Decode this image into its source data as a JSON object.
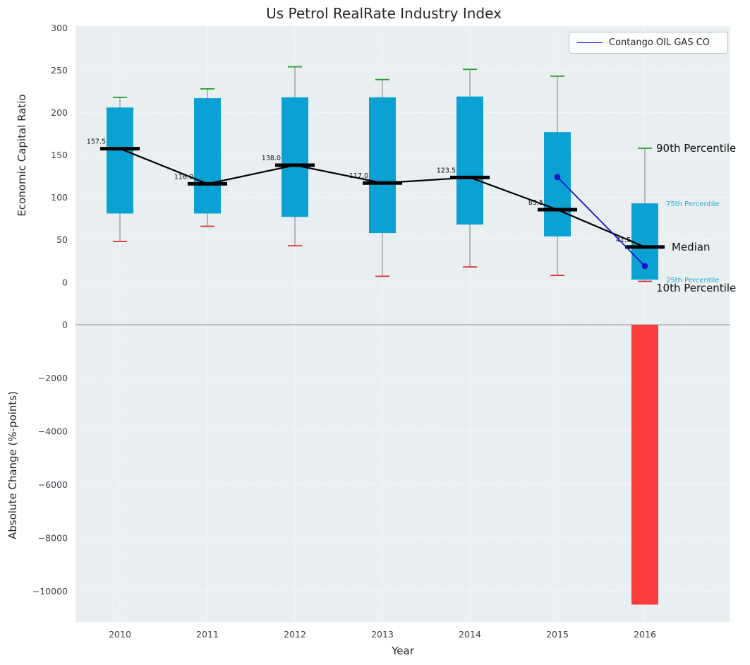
{
  "chart_data": {
    "type": "boxplot",
    "title": "Us Petrol RealRate Industry Index",
    "categories": [
      "2010",
      "2011",
      "2012",
      "2013",
      "2014",
      "2015",
      "2016"
    ],
    "top_panel": {
      "ylabel": "Economic Capital Ratio",
      "ylim": [
        -31,
        302
      ],
      "yticks": [
        0,
        50,
        100,
        150,
        200,
        250,
        300
      ],
      "grid": true,
      "boxes": [
        {
          "year": "2010",
          "p10": 48,
          "p25": 81,
          "median": 157.5,
          "p75": 206,
          "p90": 218,
          "label": "157.5"
        },
        {
          "year": "2011",
          "p10": 66,
          "p25": 81,
          "median": 116.0,
          "p75": 217,
          "p90": 228,
          "label": "116.0"
        },
        {
          "year": "2012",
          "p10": 43,
          "p25": 77,
          "median": 138.0,
          "p75": 218,
          "p90": 254,
          "label": "138.0"
        },
        {
          "year": "2013",
          "p10": 7,
          "p25": 58,
          "median": 117.0,
          "p75": 218,
          "p90": 239,
          "label": "117.0"
        },
        {
          "year": "2014",
          "p10": 18,
          "p25": 68,
          "median": 123.5,
          "p75": 219,
          "p90": 251,
          "label": "123.5"
        },
        {
          "year": "2015",
          "p10": 8,
          "p25": 54,
          "median": 85.5,
          "p75": 177,
          "p90": 243,
          "label": "85.5"
        },
        {
          "year": "2016",
          "p10": 1,
          "p25": 3,
          "median": 41.5,
          "p75": 93,
          "p90": 158,
          "label": "41.5"
        }
      ],
      "company_line": {
        "name": "Contango OIL GAS CO",
        "years": [
          "2015",
          "2016"
        ],
        "values": [
          124,
          19
        ]
      },
      "percentile_annotations": [
        {
          "text": "90th Percentile",
          "value": 158,
          "style": "major",
          "x": 930
        },
        {
          "text": "75th Percentile",
          "value": 93,
          "style": "minor",
          "x": 944
        },
        {
          "text": "Median",
          "value": 41.5,
          "style": "major",
          "x": 952
        },
        {
          "text": "25th Percentile",
          "value": 3,
          "style": "minor",
          "x": 944
        },
        {
          "text": "10th Percentile",
          "value": -7,
          "style": "major",
          "x": 930
        }
      ]
    },
    "bottom_panel": {
      "xlabel": "Year",
      "ylabel": "Absolute Change (%-points)",
      "ylim": [
        -11150,
        610
      ],
      "yticks": [
        0,
        -2000,
        -4000,
        -6000,
        -8000,
        -10000
      ],
      "grid": true,
      "bars": [
        {
          "year": "2016",
          "value": -10500
        }
      ]
    },
    "legend": {
      "position": "upper right",
      "entries": [
        {
          "label": "Contango OIL GAS CO",
          "color": "#1414cc"
        }
      ]
    },
    "colors": {
      "axes_background": "#e9eef1",
      "grid": "#ffffff",
      "box_fill": "#0ba1d2",
      "cap_high": "#22a022",
      "cap_low": "#d93030",
      "median": "#000000",
      "trend_line": "#000000",
      "company_line": "#1414cc",
      "bar_negative": "#fb3d3d",
      "minor_annotation": "#2aa5d2"
    }
  }
}
